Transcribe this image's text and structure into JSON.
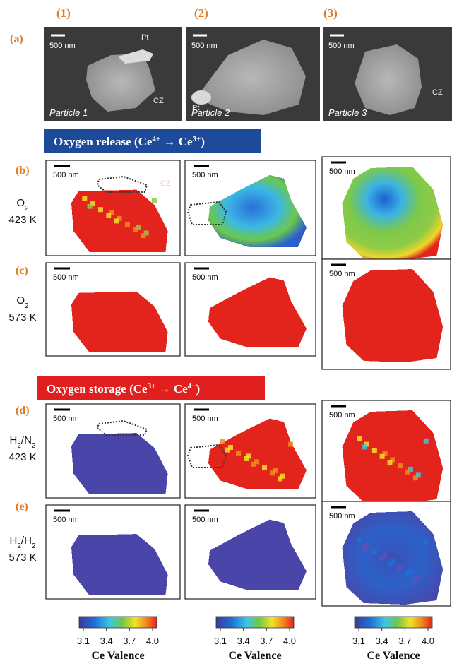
{
  "column_labels": [
    "(1)",
    "(2)",
    "(3)"
  ],
  "sem_row": {
    "label": "(a)",
    "panels": [
      {
        "scale": "500 nm",
        "tags": [
          "Pt",
          "CZ"
        ],
        "caption": "Particle 1"
      },
      {
        "scale": "500 nm",
        "tags": [
          "Pt"
        ],
        "caption": "Particle 2"
      },
      {
        "scale": "500 nm",
        "tags": [
          "CZ"
        ],
        "caption": "Particle 3"
      }
    ]
  },
  "banners": [
    {
      "parts": [
        {
          "text": "Oxygen release (Ce"
        },
        {
          "sup": "4+"
        },
        {
          "text": " → Ce"
        },
        {
          "sup": "3+"
        },
        {
          "text": ")"
        }
      ]
    },
    {
      "parts": [
        {
          "text": "Oxygen storage (Ce"
        },
        {
          "sup": "3+"
        },
        {
          "text": " → Ce"
        },
        {
          "sup": "4+"
        },
        {
          "text": ")"
        }
      ]
    }
  ],
  "map_rows": [
    {
      "label": "(b)",
      "condition": [
        {
          "text": "O"
        },
        {
          "sub": "2"
        }
      ],
      "temperature": "423 K",
      "panels": [
        {
          "scale": "500 nm",
          "tags": [
            "CZ"
          ]
        },
        {
          "scale": "500 nm"
        },
        {
          "scale": "500 nm"
        }
      ]
    },
    {
      "label": "(c)",
      "condition": [
        {
          "text": "O"
        },
        {
          "sub": "2"
        }
      ],
      "temperature": "573 K",
      "panels": [
        {
          "scale": "500 nm"
        },
        {
          "scale": "500 nm"
        },
        {
          "scale": "500 nm"
        }
      ]
    },
    {
      "label": "(d)",
      "condition": [
        {
          "text": "H"
        },
        {
          "sub": "2"
        },
        {
          "text": "/N"
        },
        {
          "sub": "2"
        }
      ],
      "temperature": "423 K",
      "panels": [
        {
          "scale": "500 nm"
        },
        {
          "scale": "500 nm"
        },
        {
          "scale": "500 nm"
        }
      ]
    },
    {
      "label": "(e)",
      "condition": [
        {
          "text": "H"
        },
        {
          "sub": "2"
        },
        {
          "text": "/H"
        },
        {
          "sub": "2"
        }
      ],
      "temperature": "573 K",
      "panels": [
        {
          "scale": "500 nm"
        },
        {
          "scale": "500 nm"
        },
        {
          "scale": "500 nm"
        }
      ]
    }
  ],
  "colorbars": [
    {
      "ticks": [
        "3.1",
        "3.4",
        "3.7",
        "4.0"
      ],
      "label": "Ce Valence"
    },
    {
      "ticks": [
        "3.1",
        "3.4",
        "3.7",
        "4.0"
      ],
      "label": "Ce Valence"
    },
    {
      "ticks": [
        "3.1",
        "3.4",
        "3.7",
        "4.0"
      ],
      "label": "Ce Valence"
    }
  ]
}
